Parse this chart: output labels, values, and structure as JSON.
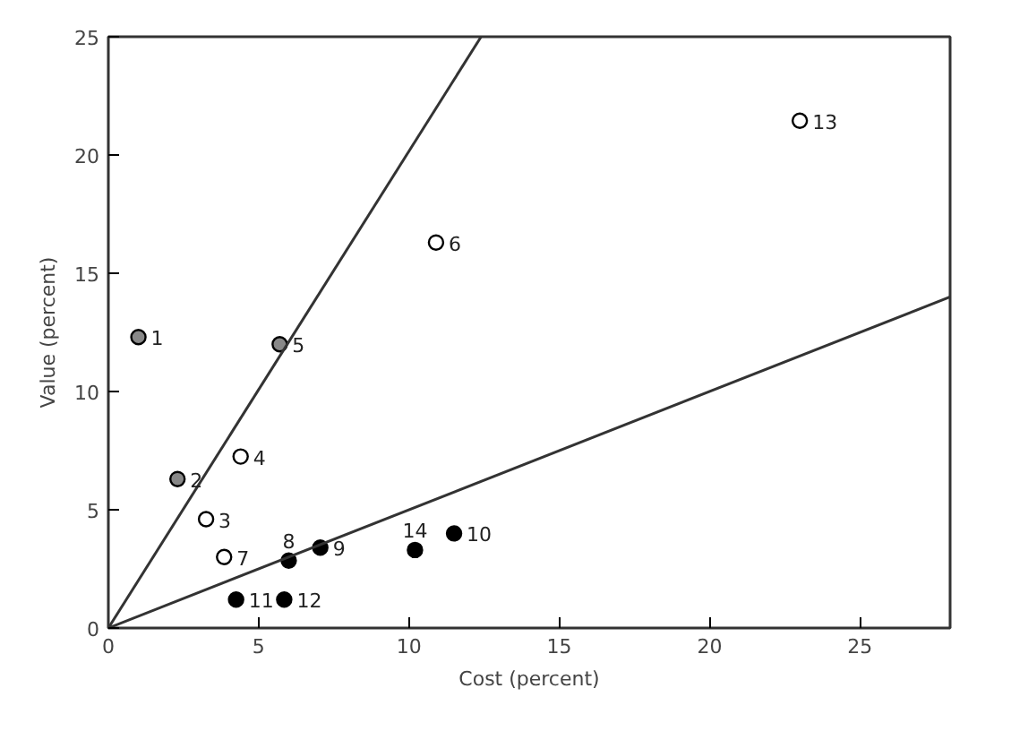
{
  "chart_data": {
    "type": "scatter",
    "xlabel": "Cost (percent)",
    "ylabel": "Value (percent)",
    "xlim": [
      0,
      28
    ],
    "ylim": [
      0,
      25
    ],
    "xticks": [
      0,
      5,
      10,
      15,
      20,
      25
    ],
    "yticks": [
      0,
      5,
      10,
      15,
      20,
      25
    ],
    "grid": false,
    "marker": "circle",
    "series": [
      {
        "color": "#888888",
        "x": [
          1.0,
          2.3,
          5.7
        ],
        "values": [
          12.3,
          6.3,
          12.0
        ]
      },
      {
        "color": "#ffffff",
        "x": [
          3.25,
          4.4,
          10.9,
          3.85,
          23.0
        ],
        "values": [
          4.6,
          7.25,
          16.3,
          3.0,
          21.45
        ]
      },
      {
        "color": "#000000",
        "x": [
          6.0,
          7.05,
          11.5,
          4.25,
          5.85,
          10.2
        ],
        "values": [
          2.85,
          3.4,
          4.0,
          1.2,
          1.2,
          3.3
        ]
      },
      {
        "type": "line",
        "color": "#333333",
        "x": [
          0,
          12.4
        ],
        "values": [
          0,
          25
        ],
        "marker": "none"
      },
      {
        "type": "line",
        "color": "#333333",
        "x": [
          0,
          28
        ],
        "values": [
          0,
          14
        ],
        "marker": "none"
      }
    ],
    "annotations": [
      {
        "text": "1",
        "x": 1.0,
        "y": 12.3
      },
      {
        "text": "2",
        "x": 2.3,
        "y": 6.3
      },
      {
        "text": "3",
        "x": 3.25,
        "y": 4.6
      },
      {
        "text": "4",
        "x": 4.4,
        "y": 7.25
      },
      {
        "text": "5",
        "x": 5.7,
        "y": 12.0
      },
      {
        "text": "6",
        "x": 10.9,
        "y": 16.3
      },
      {
        "text": "7",
        "x": 3.85,
        "y": 3.0
      },
      {
        "text": "8",
        "x": 6.0,
        "y": 2.85
      },
      {
        "text": "9",
        "x": 7.05,
        "y": 3.4
      },
      {
        "text": "10",
        "x": 11.5,
        "y": 4.0
      },
      {
        "text": "11",
        "x": 4.25,
        "y": 1.2
      },
      {
        "text": "12",
        "x": 5.85,
        "y": 1.2
      },
      {
        "text": "13",
        "x": 23.0,
        "y": 21.45
      },
      {
        "text": "14",
        "x": 10.2,
        "y": 3.3
      }
    ]
  }
}
